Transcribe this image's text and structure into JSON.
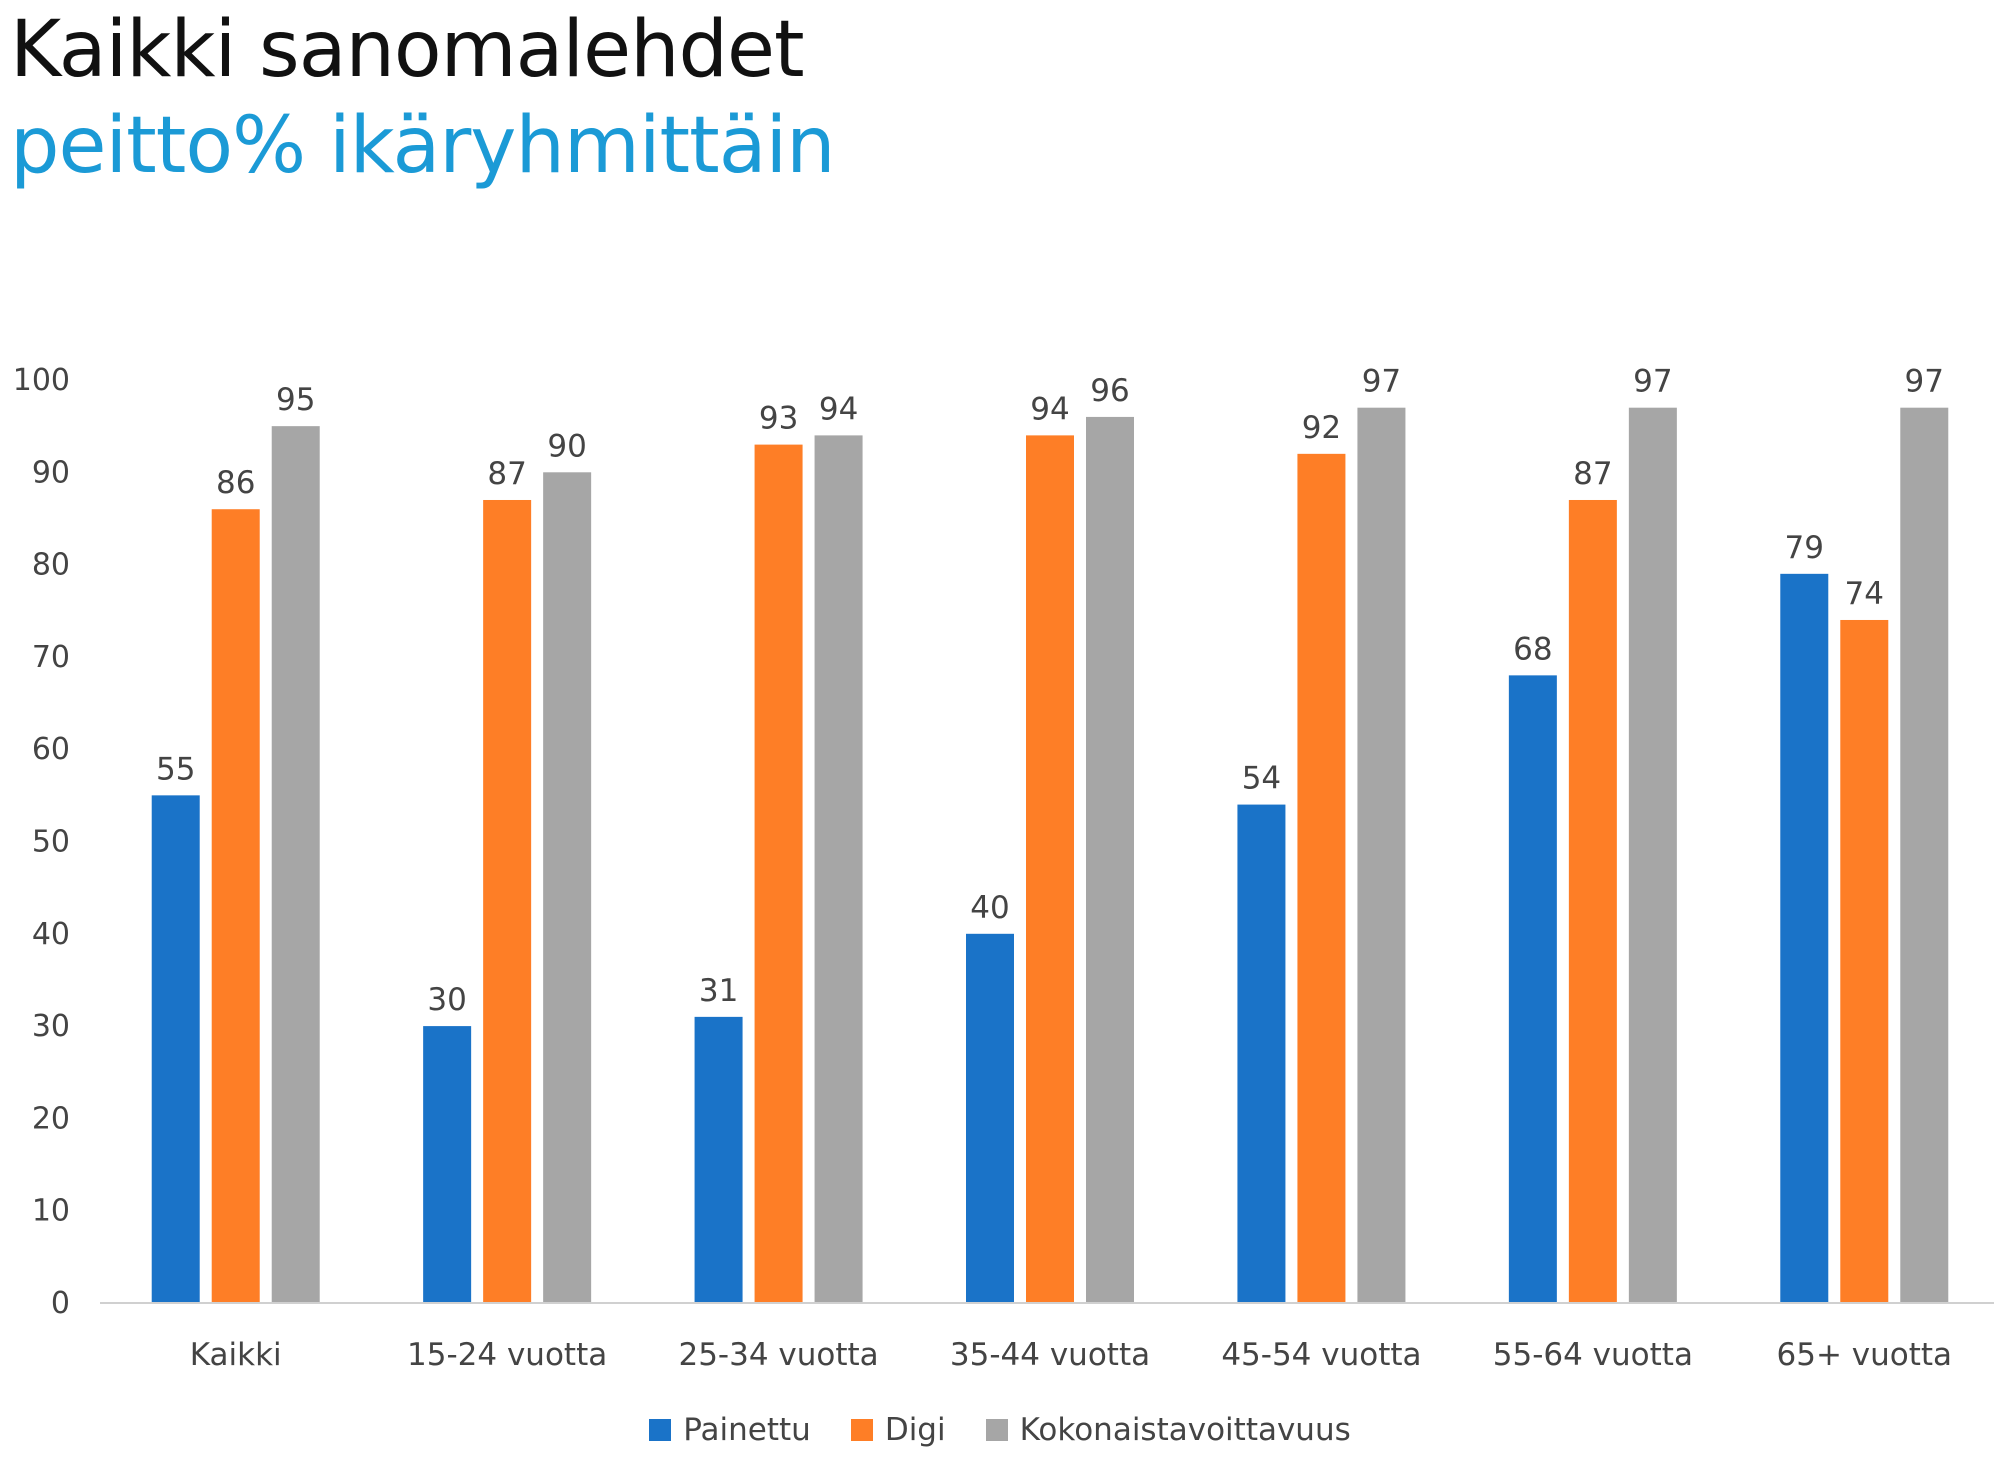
{
  "header": {
    "title": "Kaikki sanomalehdet",
    "subtitle": "peitto% ikäryhmittäin"
  },
  "chart_data": {
    "type": "bar",
    "categories": [
      "Kaikki",
      "15-24 vuotta",
      "25-34 vuotta",
      "35-44 vuotta",
      "45-54 vuotta",
      "55-64 vuotta",
      "65+ vuotta"
    ],
    "series": [
      {
        "name": "Painettu",
        "color": "#1a73c8",
        "values": [
          55,
          30,
          31,
          40,
          54,
          68,
          79
        ]
      },
      {
        "name": "Digi",
        "color": "#fe7e26",
        "values": [
          86,
          87,
          93,
          94,
          92,
          87,
          74
        ]
      },
      {
        "name": "Kokonaistavoittavuus",
        "color": "#a6a6a6",
        "values": [
          95,
          90,
          94,
          96,
          97,
          97,
          97
        ]
      }
    ],
    "ylim": [
      0,
      100
    ],
    "yticks": [
      0,
      10,
      20,
      30,
      40,
      50,
      60,
      70,
      80,
      90,
      100
    ],
    "xlabel": "",
    "ylabel": "",
    "grid": false,
    "legend": "bottom",
    "data_labels": true
  }
}
